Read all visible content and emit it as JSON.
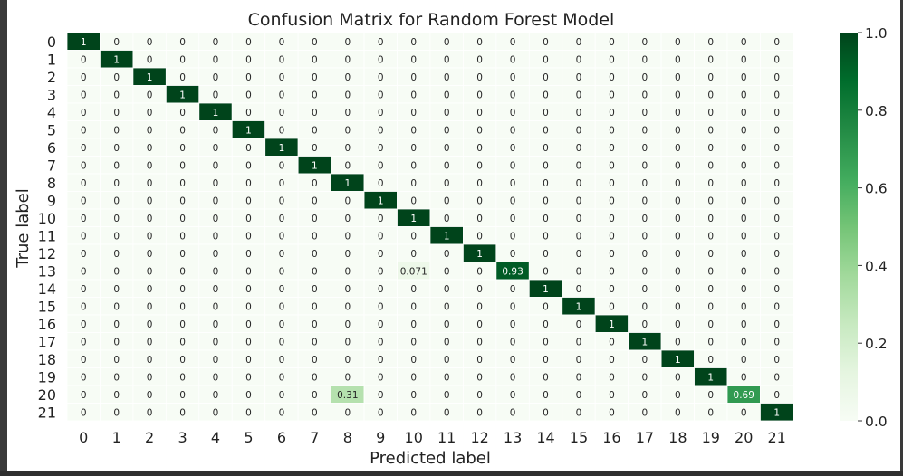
{
  "chart_data": {
    "type": "heatmap",
    "title": "Confusion Matrix for Random Forest Model",
    "xlabel": "Predicted label",
    "ylabel": "True label",
    "x_tick_labels": [
      "0",
      "1",
      "2",
      "3",
      "4",
      "5",
      "6",
      "7",
      "8",
      "9",
      "10",
      "11",
      "12",
      "13",
      "14",
      "15",
      "16",
      "17",
      "18",
      "19",
      "20",
      "21"
    ],
    "y_tick_labels": [
      "0",
      "1",
      "2",
      "3",
      "4",
      "5",
      "6",
      "7",
      "8",
      "9",
      "10",
      "11",
      "12",
      "13",
      "14",
      "15",
      "16",
      "17",
      "18",
      "19",
      "20",
      "21"
    ],
    "values": [
      [
        1,
        0,
        0,
        0,
        0,
        0,
        0,
        0,
        0,
        0,
        0,
        0,
        0,
        0,
        0,
        0,
        0,
        0,
        0,
        0,
        0,
        0
      ],
      [
        0,
        1,
        0,
        0,
        0,
        0,
        0,
        0,
        0,
        0,
        0,
        0,
        0,
        0,
        0,
        0,
        0,
        0,
        0,
        0,
        0,
        0
      ],
      [
        0,
        0,
        1,
        0,
        0,
        0,
        0,
        0,
        0,
        0,
        0,
        0,
        0,
        0,
        0,
        0,
        0,
        0,
        0,
        0,
        0,
        0
      ],
      [
        0,
        0,
        0,
        1,
        0,
        0,
        0,
        0,
        0,
        0,
        0,
        0,
        0,
        0,
        0,
        0,
        0,
        0,
        0,
        0,
        0,
        0
      ],
      [
        0,
        0,
        0,
        0,
        1,
        0,
        0,
        0,
        0,
        0,
        0,
        0,
        0,
        0,
        0,
        0,
        0,
        0,
        0,
        0,
        0,
        0
      ],
      [
        0,
        0,
        0,
        0,
        0,
        1,
        0,
        0,
        0,
        0,
        0,
        0,
        0,
        0,
        0,
        0,
        0,
        0,
        0,
        0,
        0,
        0
      ],
      [
        0,
        0,
        0,
        0,
        0,
        0,
        1,
        0,
        0,
        0,
        0,
        0,
        0,
        0,
        0,
        0,
        0,
        0,
        0,
        0,
        0,
        0
      ],
      [
        0,
        0,
        0,
        0,
        0,
        0,
        0,
        1,
        0,
        0,
        0,
        0,
        0,
        0,
        0,
        0,
        0,
        0,
        0,
        0,
        0,
        0
      ],
      [
        0,
        0,
        0,
        0,
        0,
        0,
        0,
        0,
        1,
        0,
        0,
        0,
        0,
        0,
        0,
        0,
        0,
        0,
        0,
        0,
        0,
        0
      ],
      [
        0,
        0,
        0,
        0,
        0,
        0,
        0,
        0,
        0,
        1,
        0,
        0,
        0,
        0,
        0,
        0,
        0,
        0,
        0,
        0,
        0,
        0
      ],
      [
        0,
        0,
        0,
        0,
        0,
        0,
        0,
        0,
        0,
        0,
        1,
        0,
        0,
        0,
        0,
        0,
        0,
        0,
        0,
        0,
        0,
        0
      ],
      [
        0,
        0,
        0,
        0,
        0,
        0,
        0,
        0,
        0,
        0,
        0,
        1,
        0,
        0,
        0,
        0,
        0,
        0,
        0,
        0,
        0,
        0
      ],
      [
        0,
        0,
        0,
        0,
        0,
        0,
        0,
        0,
        0,
        0,
        0,
        0,
        1,
        0,
        0,
        0,
        0,
        0,
        0,
        0,
        0,
        0
      ],
      [
        0,
        0,
        0,
        0,
        0,
        0,
        0,
        0,
        0,
        0,
        0.071,
        0,
        0,
        0.93,
        0,
        0,
        0,
        0,
        0,
        0,
        0,
        0
      ],
      [
        0,
        0,
        0,
        0,
        0,
        0,
        0,
        0,
        0,
        0,
        0,
        0,
        0,
        0,
        1,
        0,
        0,
        0,
        0,
        0,
        0,
        0
      ],
      [
        0,
        0,
        0,
        0,
        0,
        0,
        0,
        0,
        0,
        0,
        0,
        0,
        0,
        0,
        0,
        1,
        0,
        0,
        0,
        0,
        0,
        0
      ],
      [
        0,
        0,
        0,
        0,
        0,
        0,
        0,
        0,
        0,
        0,
        0,
        0,
        0,
        0,
        0,
        0,
        1,
        0,
        0,
        0,
        0,
        0
      ],
      [
        0,
        0,
        0,
        0,
        0,
        0,
        0,
        0,
        0,
        0,
        0,
        0,
        0,
        0,
        0,
        0,
        0,
        1,
        0,
        0,
        0,
        0
      ],
      [
        0,
        0,
        0,
        0,
        0,
        0,
        0,
        0,
        0,
        0,
        0,
        0,
        0,
        0,
        0,
        0,
        0,
        0,
        1,
        0,
        0,
        0
      ],
      [
        0,
        0,
        0,
        0,
        0,
        0,
        0,
        0,
        0,
        0,
        0,
        0,
        0,
        0,
        0,
        0,
        0,
        0,
        0,
        1,
        0,
        0
      ],
      [
        0,
        0,
        0,
        0,
        0,
        0,
        0,
        0,
        0.31,
        0,
        0,
        0,
        0,
        0,
        0,
        0,
        0,
        0,
        0,
        0,
        0.69,
        0
      ],
      [
        0,
        0,
        0,
        0,
        0,
        0,
        0,
        0,
        0,
        0,
        0,
        0,
        0,
        0,
        0,
        0,
        0,
        0,
        0,
        0,
        0,
        1
      ]
    ],
    "value_range": [
      0.0,
      1.0
    ],
    "colormap": "Greens",
    "colors": {
      "low": "#f7fcf5",
      "high": "#00441b"
    },
    "colorbar_ticks": [
      "0.0",
      "0.2",
      "0.4",
      "0.6",
      "0.8",
      "1.0"
    ],
    "annotated": true,
    "grid": true
  }
}
